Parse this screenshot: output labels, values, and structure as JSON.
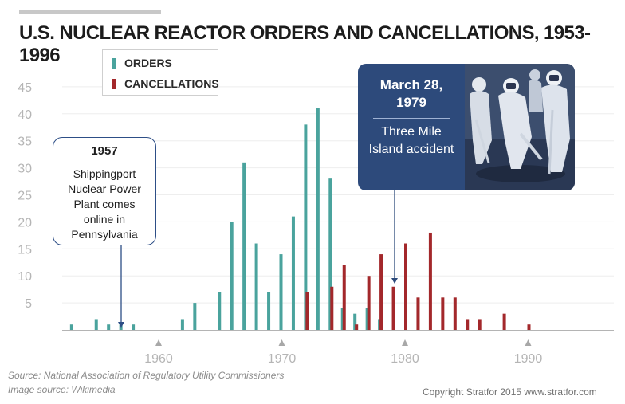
{
  "header": {
    "title": "U.S. NUCLEAR REACTOR ORDERS AND CANCELLATIONS, 1953-1996"
  },
  "legend": {
    "orders_label": "ORDERS",
    "cancellations_label": "CANCELLATIONS"
  },
  "annotations": {
    "shippingport": {
      "year": "1957",
      "text": "Shippingport Nuclear Power Plant comes online in Pennsylvania"
    },
    "three_mile_island": {
      "date": "March 28, 1979",
      "text": "Three Mile Island accident",
      "photo_icon": "hazmat-cleanup-crew-photo"
    }
  },
  "footer": {
    "source": "Source: National Association of Regulatory Utility Commissioners",
    "image_source": "Image source: Wikimedia",
    "copyright": "Copyright Stratfor 2015   www.stratfor.com"
  },
  "colors": {
    "orders": "#4aa39d",
    "cancellations": "#a3282b",
    "callout_navy": "#2d4a7b",
    "axis_text": "#b5b5b5"
  },
  "chart_data": {
    "type": "bar",
    "title": "U.S. NUCLEAR REACTOR ORDERS AND CANCELLATIONS, 1953-1996",
    "xlabel": "",
    "ylabel": "",
    "xlim": [
      1952,
      1997
    ],
    "ylim": [
      0,
      45
    ],
    "x_ticks": [
      1960,
      1970,
      1980,
      1990
    ],
    "y_ticks": [
      5,
      10,
      15,
      20,
      25,
      30,
      35,
      40,
      45
    ],
    "grid": "horizontal",
    "legend_position": "top-left",
    "series": [
      {
        "name": "ORDERS",
        "points": [
          {
            "x": 1953,
            "y": 1
          },
          {
            "x": 1955,
            "y": 2
          },
          {
            "x": 1956,
            "y": 1
          },
          {
            "x": 1957,
            "y": 1
          },
          {
            "x": 1958,
            "y": 1
          },
          {
            "x": 1962,
            "y": 2
          },
          {
            "x": 1963,
            "y": 5
          },
          {
            "x": 1965,
            "y": 7
          },
          {
            "x": 1966,
            "y": 20
          },
          {
            "x": 1967,
            "y": 31
          },
          {
            "x": 1968,
            "y": 16
          },
          {
            "x": 1969,
            "y": 7
          },
          {
            "x": 1970,
            "y": 14
          },
          {
            "x": 1971,
            "y": 21
          },
          {
            "x": 1972,
            "y": 38
          },
          {
            "x": 1973,
            "y": 41
          },
          {
            "x": 1974,
            "y": 28
          },
          {
            "x": 1975,
            "y": 4
          },
          {
            "x": 1976,
            "y": 3
          },
          {
            "x": 1977,
            "y": 4
          },
          {
            "x": 1978,
            "y": 2
          }
        ]
      },
      {
        "name": "CANCELLATIONS",
        "points": [
          {
            "x": 1972,
            "y": 7
          },
          {
            "x": 1974,
            "y": 8
          },
          {
            "x": 1975,
            "y": 12
          },
          {
            "x": 1976,
            "y": 1
          },
          {
            "x": 1977,
            "y": 10
          },
          {
            "x": 1978,
            "y": 14
          },
          {
            "x": 1979,
            "y": 8
          },
          {
            "x": 1980,
            "y": 16
          },
          {
            "x": 1981,
            "y": 6
          },
          {
            "x": 1982,
            "y": 18
          },
          {
            "x": 1983,
            "y": 6
          },
          {
            "x": 1984,
            "y": 6
          },
          {
            "x": 1985,
            "y": 2
          },
          {
            "x": 1986,
            "y": 2
          },
          {
            "x": 1988,
            "y": 3
          },
          {
            "x": 1990,
            "y": 1
          }
        ]
      }
    ]
  }
}
